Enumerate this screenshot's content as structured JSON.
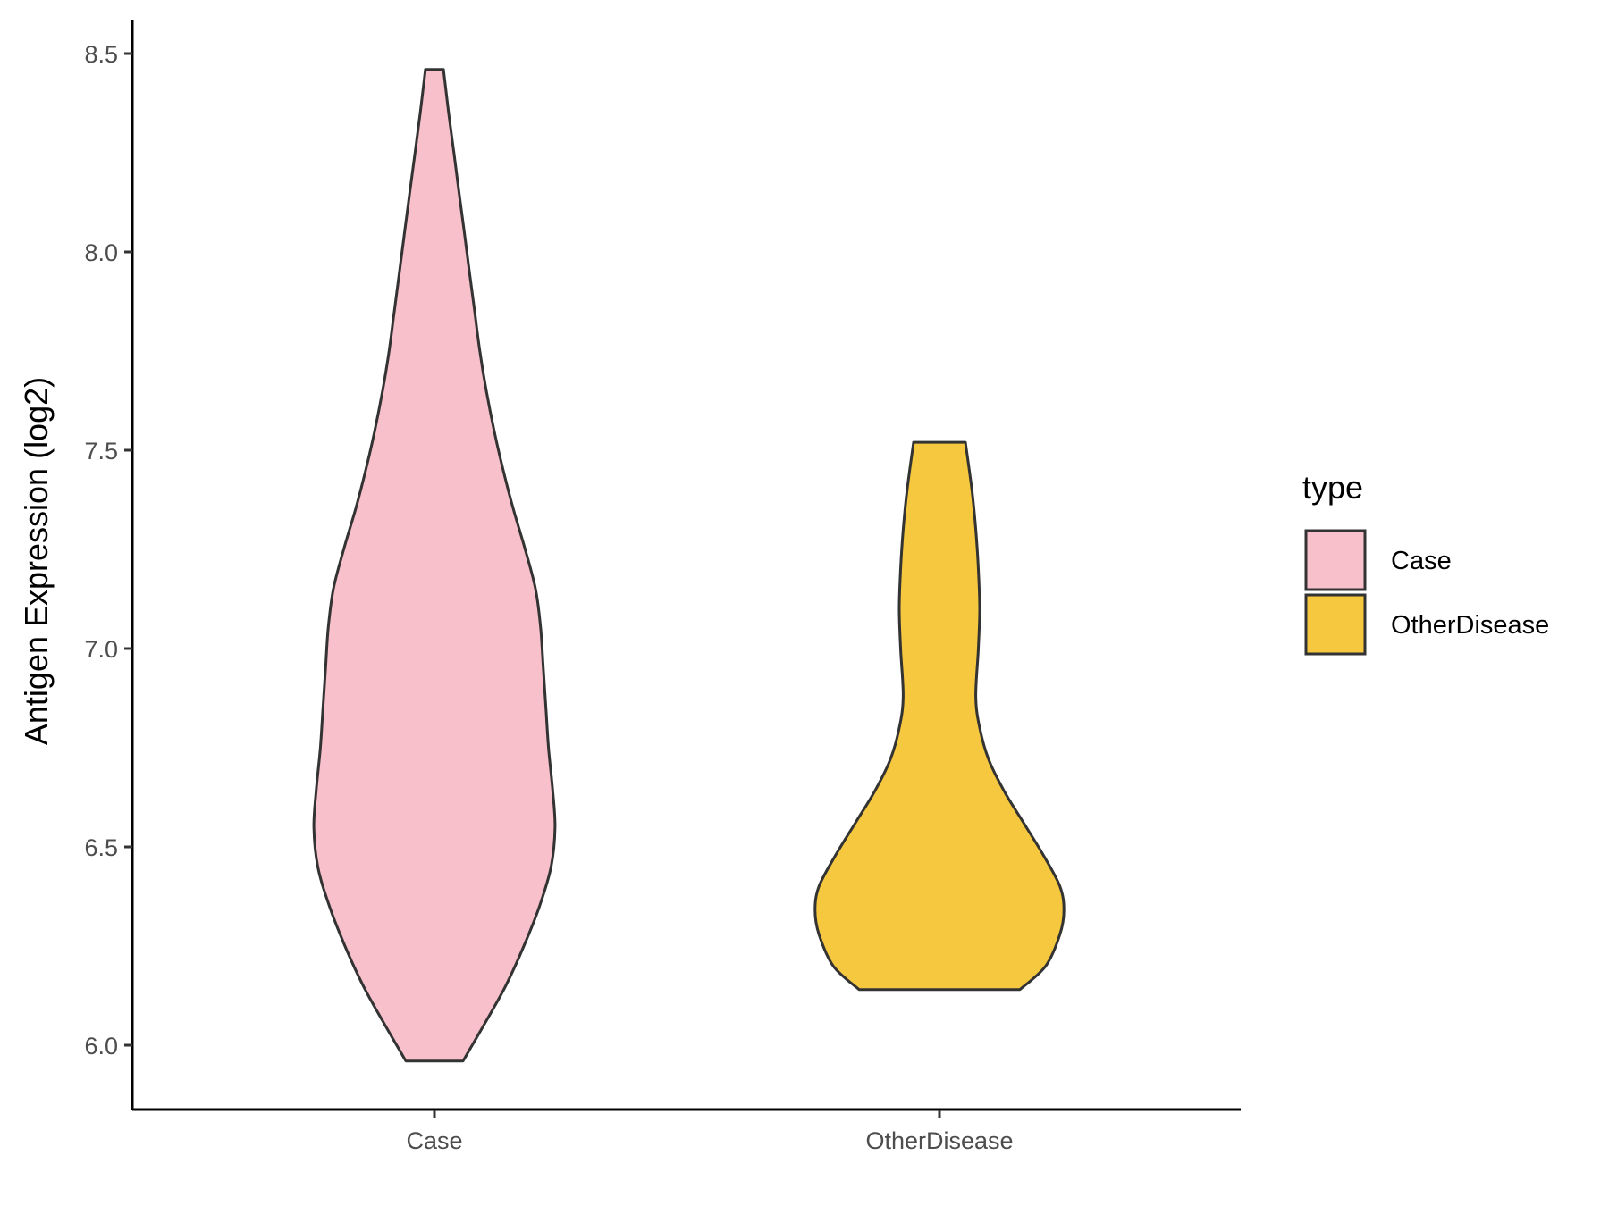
{
  "chart_data": {
    "type": "violin",
    "ylabel": "Antigen Expression (log2)",
    "xlabel": "",
    "categories": [
      "Case",
      "OtherDisease"
    ],
    "ylim": [
      5.9,
      8.58
    ],
    "yticks": [
      6.0,
      6.5,
      7.0,
      7.5,
      8.0,
      8.5
    ],
    "ytick_labels": [
      "6.0",
      "6.5",
      "7.0",
      "7.5",
      "8.0",
      "8.5"
    ],
    "grid": false,
    "legend": {
      "title": "type",
      "placement": "right",
      "entries": [
        {
          "label": "Case",
          "color": "#F7C0CB"
        },
        {
          "label": "OtherDisease",
          "color": "#F6C83F"
        }
      ]
    },
    "series": [
      {
        "category": "Case",
        "color": "#F7C0CB",
        "min": 5.96,
        "max": 8.46,
        "density_profile": [
          [
            5.96,
            0.22
          ],
          [
            6.05,
            0.38
          ],
          [
            6.15,
            0.55
          ],
          [
            6.25,
            0.69
          ],
          [
            6.35,
            0.81
          ],
          [
            6.45,
            0.9
          ],
          [
            6.55,
            0.93
          ],
          [
            6.65,
            0.91
          ],
          [
            6.75,
            0.88
          ],
          [
            6.85,
            0.86
          ],
          [
            6.95,
            0.84
          ],
          [
            7.05,
            0.82
          ],
          [
            7.15,
            0.78
          ],
          [
            7.25,
            0.7
          ],
          [
            7.35,
            0.61
          ],
          [
            7.45,
            0.53
          ],
          [
            7.55,
            0.46
          ],
          [
            7.65,
            0.4
          ],
          [
            7.75,
            0.35
          ],
          [
            7.85,
            0.31
          ],
          [
            7.95,
            0.27
          ],
          [
            8.05,
            0.23
          ],
          [
            8.15,
            0.19
          ],
          [
            8.25,
            0.15
          ],
          [
            8.35,
            0.11
          ],
          [
            8.46,
            0.07
          ]
        ]
      },
      {
        "category": "OtherDisease",
        "color": "#F6C83F",
        "min": 6.14,
        "max": 7.52,
        "density_profile": [
          [
            6.14,
            0.62
          ],
          [
            6.2,
            0.82
          ],
          [
            6.28,
            0.93
          ],
          [
            6.34,
            0.96
          ],
          [
            6.4,
            0.93
          ],
          [
            6.48,
            0.8
          ],
          [
            6.56,
            0.65
          ],
          [
            6.64,
            0.5
          ],
          [
            6.72,
            0.38
          ],
          [
            6.8,
            0.31
          ],
          [
            6.88,
            0.28
          ],
          [
            7.0,
            0.3
          ],
          [
            7.1,
            0.31
          ],
          [
            7.2,
            0.3
          ],
          [
            7.3,
            0.28
          ],
          [
            7.4,
            0.25
          ],
          [
            7.52,
            0.2
          ]
        ]
      }
    ]
  }
}
